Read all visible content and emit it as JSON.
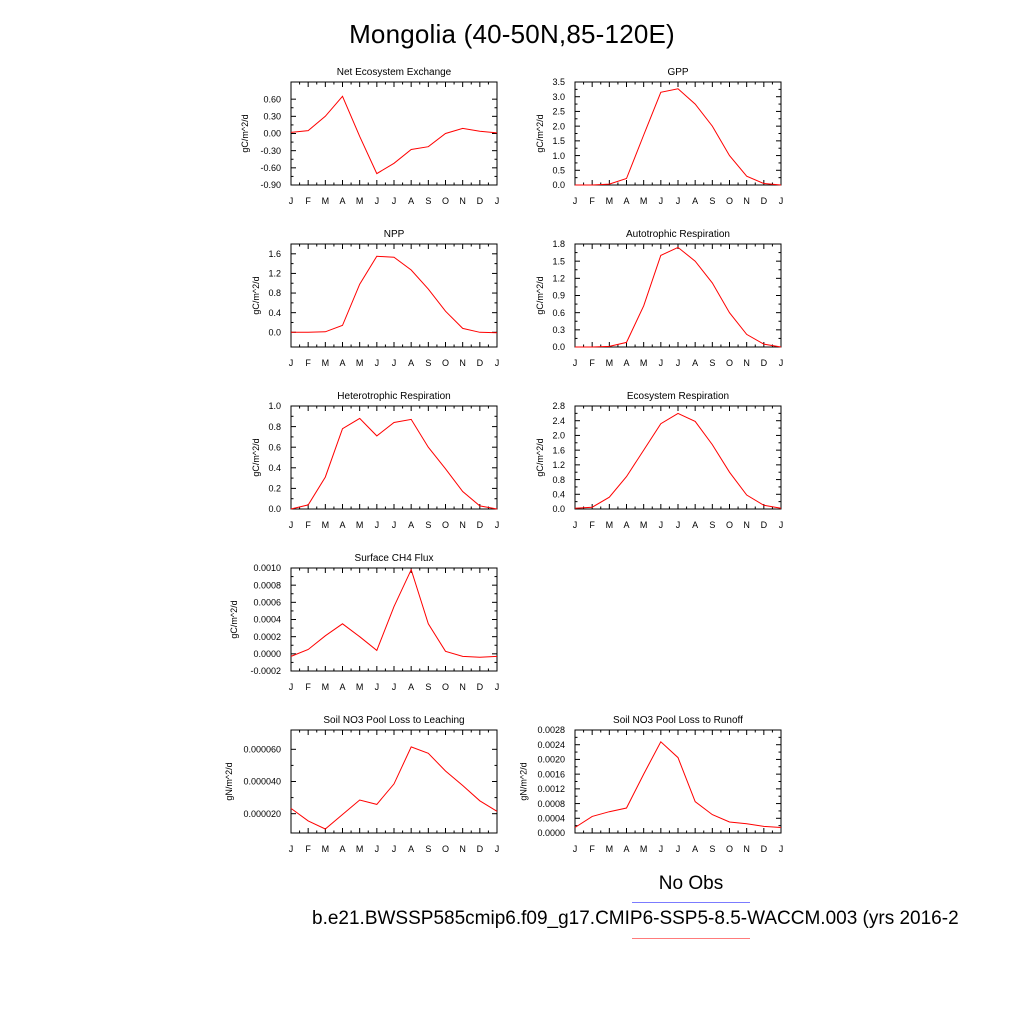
{
  "title": "Mongolia (40-50N,85-120E)",
  "legend": {
    "obs_label": "No Obs",
    "case_label": "b.e21.BWSSP585cmip6.f09_g17.CMIP6-SSP5-8.5-WACCM.003 (yrs 2016-2",
    "obs_color": "#7b7bff",
    "model_color": "#ff7b7b"
  },
  "line_color": "#ff0000",
  "chart_data": [
    {
      "type": "line",
      "title": "Net Ecosystem Exchange",
      "ylabel": "gC/m^2/d",
      "categories": [
        "J",
        "F",
        "M",
        "A",
        "M",
        "J",
        "J",
        "A",
        "S",
        "O",
        "N",
        "D",
        "J"
      ],
      "yticks": [
        "0.60",
        "0.30",
        "0.00",
        "-0.30",
        "-0.60",
        "-0.90"
      ],
      "ylim": [
        -0.9,
        0.9
      ],
      "values": [
        0.02,
        0.05,
        0.3,
        0.65,
        -0.05,
        -0.7,
        -0.52,
        -0.28,
        -0.23,
        0.0,
        0.09,
        0.04,
        0.01
      ]
    },
    {
      "type": "line",
      "title": "GPP",
      "ylabel": "gC/m^2/d",
      "categories": [
        "J",
        "F",
        "M",
        "A",
        "M",
        "J",
        "J",
        "A",
        "S",
        "O",
        "N",
        "D",
        "J"
      ],
      "yticks": [
        "3.5",
        "3.0",
        "2.5",
        "2.0",
        "1.5",
        "1.0",
        "0.5",
        "0.0"
      ],
      "ylim": [
        0,
        3.5
      ],
      "values": [
        0.0,
        0.0,
        0.03,
        0.22,
        1.7,
        3.15,
        3.27,
        2.75,
        2.0,
        1.0,
        0.3,
        0.05,
        0.0
      ]
    },
    {
      "type": "line",
      "title": "NPP",
      "ylabel": "gC/m^2/d",
      "categories": [
        "J",
        "F",
        "M",
        "A",
        "M",
        "J",
        "J",
        "A",
        "S",
        "O",
        "N",
        "D",
        "J"
      ],
      "yticks": [
        "1.6",
        "1.2",
        "0.8",
        "0.4",
        "0.0"
      ],
      "ylim": [
        -0.3,
        1.8
      ],
      "values": [
        0.0,
        0.0,
        0.01,
        0.14,
        0.98,
        1.55,
        1.53,
        1.27,
        0.88,
        0.43,
        0.08,
        0.0,
        -0.01
      ]
    },
    {
      "type": "line",
      "title": "Autotrophic Respiration",
      "ylabel": "gC/m^2/d",
      "categories": [
        "J",
        "F",
        "M",
        "A",
        "M",
        "J",
        "J",
        "A",
        "S",
        "O",
        "N",
        "D",
        "J"
      ],
      "yticks": [
        "1.8",
        "1.5",
        "1.2",
        "0.9",
        "0.6",
        "0.3",
        "0.0"
      ],
      "ylim": [
        0,
        1.8
      ],
      "values": [
        0.0,
        0.0,
        0.01,
        0.08,
        0.72,
        1.6,
        1.74,
        1.5,
        1.12,
        0.6,
        0.22,
        0.05,
        0.0
      ]
    },
    {
      "type": "line",
      "title": "Heterotrophic Respiration",
      "ylabel": "gC/m^2/d",
      "categories": [
        "J",
        "F",
        "M",
        "A",
        "M",
        "J",
        "J",
        "A",
        "S",
        "O",
        "N",
        "D",
        "J"
      ],
      "yticks": [
        "1.0",
        "0.8",
        "0.6",
        "0.4",
        "0.2",
        "0.0"
      ],
      "ylim": [
        0,
        1.0
      ],
      "values": [
        0.0,
        0.04,
        0.31,
        0.78,
        0.88,
        0.71,
        0.84,
        0.87,
        0.6,
        0.39,
        0.17,
        0.03,
        0.0
      ]
    },
    {
      "type": "line",
      "title": "Ecosystem Respiration",
      "ylabel": "gC/m^2/d",
      "categories": [
        "J",
        "F",
        "M",
        "A",
        "M",
        "J",
        "J",
        "A",
        "S",
        "O",
        "N",
        "D",
        "J"
      ],
      "yticks": [
        "2.8",
        "2.4",
        "2.0",
        "1.6",
        "1.2",
        "0.8",
        "0.4",
        "0.0"
      ],
      "ylim": [
        0,
        2.8
      ],
      "values": [
        0.02,
        0.05,
        0.32,
        0.88,
        1.6,
        2.32,
        2.6,
        2.38,
        1.75,
        1.0,
        0.38,
        0.1,
        0.02
      ]
    },
    {
      "type": "line",
      "title": "Surface CH4 Flux",
      "ylabel": "gC/m^2/d",
      "categories": [
        "J",
        "F",
        "M",
        "A",
        "M",
        "J",
        "J",
        "A",
        "S",
        "O",
        "N",
        "D",
        "J"
      ],
      "yticks": [
        "0.0010",
        "0.0008",
        "0.0006",
        "0.0004",
        "0.0002",
        "0.0000",
        "-0.0002"
      ],
      "ylim": [
        -0.0002,
        0.001
      ],
      "values": [
        -3e-05,
        5e-05,
        0.00021,
        0.00035,
        0.0002,
        4e-05,
        0.00055,
        0.00098,
        0.00035,
        3e-05,
        -3e-05,
        -4e-05,
        -3e-05
      ]
    },
    {
      "type": "line",
      "title": "Soil NO3 Pool Loss to Leaching",
      "ylabel": "gN/m^2/d",
      "categories": [
        "J",
        "F",
        "M",
        "A",
        "M",
        "J",
        "J",
        "A",
        "S",
        "O",
        "N",
        "D",
        "J"
      ],
      "yticks": [
        "0.000060",
        "0.000040",
        "0.000020"
      ],
      "ylim": [
        8e-06,
        7.2e-05
      ],
      "values": [
        2.33e-05,
        1.55e-05,
        1.05e-05,
        1.95e-05,
        2.85e-05,
        2.58e-05,
        3.85e-05,
        6.15e-05,
        5.75e-05,
        4.65e-05,
        3.75e-05,
        2.8e-05,
        2.15e-05
      ]
    },
    {
      "type": "line",
      "title": "Soil NO3 Pool Loss to Runoff",
      "ylabel": "gN/m^2/d",
      "categories": [
        "J",
        "F",
        "M",
        "A",
        "M",
        "J",
        "J",
        "A",
        "S",
        "O",
        "N",
        "D",
        "J"
      ],
      "yticks": [
        "0.0028",
        "0.0024",
        "0.0020",
        "0.0016",
        "0.0012",
        "0.0008",
        "0.0004",
        "0.0000"
      ],
      "ylim": [
        0,
        0.0028
      ],
      "values": [
        0.00015,
        0.00045,
        0.00058,
        0.00068,
        0.0016,
        0.00248,
        0.00205,
        0.00085,
        0.0005,
        0.0003,
        0.00025,
        0.00018,
        0.00015
      ]
    }
  ]
}
